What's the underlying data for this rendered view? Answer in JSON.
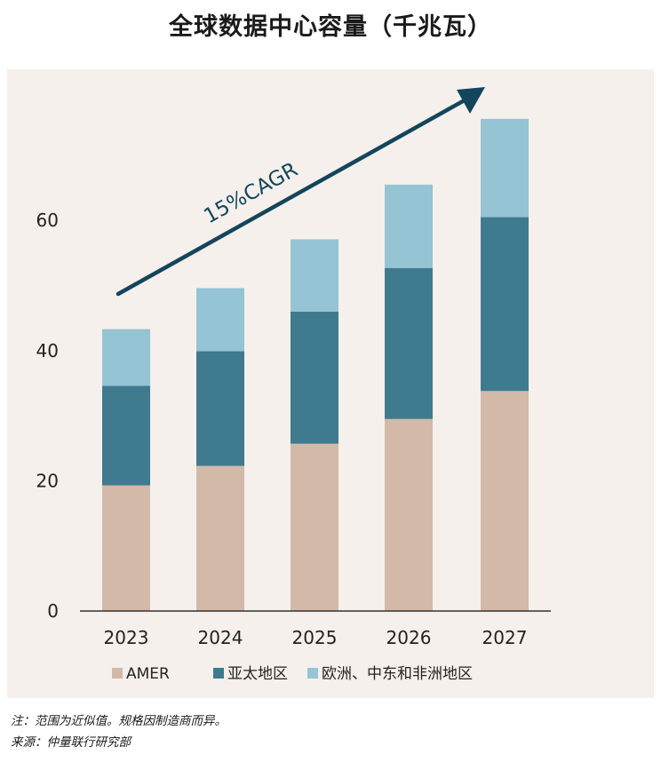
{
  "title": "全球数据中心容量（千兆瓦）",
  "chart_data": {
    "type": "bar",
    "stacked": true,
    "categories": [
      "2023",
      "2024",
      "2025",
      "2026",
      "2027"
    ],
    "series": [
      {
        "name": "AMER",
        "color": "#d3b9a7",
        "values": [
          19.3,
          22.3,
          25.7,
          29.5,
          33.8
        ]
      },
      {
        "name": "亚太地区",
        "color": "#3f7a8f",
        "values": [
          15.3,
          17.6,
          20.3,
          23.2,
          26.7
        ]
      },
      {
        "name": "欧洲、中东和非洲地区",
        "color": "#95c4d4",
        "values": [
          8.7,
          9.7,
          11.1,
          12.8,
          15.1
        ]
      }
    ],
    "yticks": [
      "0",
      "20",
      "40",
      "60"
    ],
    "ylim": [
      0,
      80
    ],
    "annotation": "15%CAGR",
    "arrow_color": "#13455c",
    "legend_position": "bottom"
  },
  "notes": {
    "note": "注：范围为近似值。规格因制造商而异。",
    "source": "来源：仲量联行研究部"
  }
}
